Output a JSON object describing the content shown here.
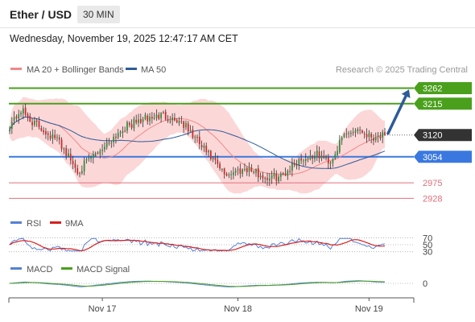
{
  "header": {
    "pair": "Ether / USD",
    "timeframe": "30 MIN"
  },
  "datetime": "Wednesday, November 19, 2025 12:47:17 AM CET",
  "credit": "Research © 2025 Trading Central",
  "colors": {
    "ma20": "#f08888",
    "ma50": "#2e5b9a",
    "band": "#fbd0d0",
    "green": "#4aa01c",
    "blue": "#3a78e0",
    "red": "#e0707c",
    "current": "#333333",
    "rsi": "#5580d8",
    "rsi_ma": "#d62020",
    "macd": "#5580d8",
    "macd_signal": "#4aa01c",
    "arrow": "#2e5b9a"
  },
  "chart_data": [
    {
      "type": "candlestick",
      "legend": [
        {
          "name": "MA 20 + Bollinger Bands",
          "color": "#f08888"
        },
        {
          "name": "MA 50",
          "color": "#2e5b9a"
        }
      ],
      "ylim": [
        2890,
        3290
      ],
      "current_price": "3120",
      "levels": [
        {
          "value": 3262,
          "label": "3262",
          "kind": "resistance",
          "color": "#4aa01c"
        },
        {
          "value": 3215,
          "label": "3215",
          "kind": "resistance",
          "color": "#4aa01c"
        },
        {
          "value": 3054,
          "label": "3054",
          "kind": "pivot",
          "color": "#3a78e0"
        },
        {
          "value": 2975,
          "label": "2975",
          "kind": "support",
          "color": "#e0707c"
        },
        {
          "value": 2928,
          "label": "2928",
          "kind": "support",
          "color": "#e0707c"
        }
      ],
      "anchors": [
        {
          "i": 0,
          "v": 3150
        },
        {
          "i": 5,
          "v": 3195
        },
        {
          "i": 10,
          "v": 3160
        },
        {
          "i": 22,
          "v": 3100
        },
        {
          "i": 30,
          "v": 3010
        },
        {
          "i": 40,
          "v": 3075
        },
        {
          "i": 50,
          "v": 3140
        },
        {
          "i": 58,
          "v": 3165
        },
        {
          "i": 68,
          "v": 3180
        },
        {
          "i": 76,
          "v": 3160
        },
        {
          "i": 82,
          "v": 3110
        },
        {
          "i": 88,
          "v": 3060
        },
        {
          "i": 95,
          "v": 3000
        },
        {
          "i": 105,
          "v": 3020
        },
        {
          "i": 113,
          "v": 2990
        },
        {
          "i": 120,
          "v": 2995
        },
        {
          "i": 128,
          "v": 3045
        },
        {
          "i": 136,
          "v": 3060
        },
        {
          "i": 142,
          "v": 3040
        },
        {
          "i": 148,
          "v": 3120
        },
        {
          "i": 154,
          "v": 3140
        },
        {
          "i": 160,
          "v": 3115
        },
        {
          "i": 166,
          "v": 3120
        }
      ],
      "n_candles": 167,
      "arrow": {
        "from": 3120,
        "to": 3262
      },
      "x_ticks": [
        "Nov 17",
        "Nov 18",
        "Nov 19"
      ],
      "x_tick_index": [
        41,
        101,
        159
      ]
    },
    {
      "type": "line",
      "legend": [
        {
          "name": "RSI",
          "color": "#5580d8"
        },
        {
          "name": "9MA",
          "color": "#d62020"
        }
      ],
      "ylim": [
        20,
        80
      ],
      "ticks": [
        {
          "value": 70,
          "label": "70"
        },
        {
          "value": 50,
          "label": "50"
        },
        {
          "value": 30,
          "label": "30"
        }
      ]
    },
    {
      "type": "line",
      "legend": [
        {
          "name": "MACD",
          "color": "#5580d8"
        },
        {
          "name": "MACD Signal",
          "color": "#4aa01c"
        }
      ],
      "ticks": [
        {
          "value": 0,
          "label": "0"
        }
      ]
    }
  ]
}
